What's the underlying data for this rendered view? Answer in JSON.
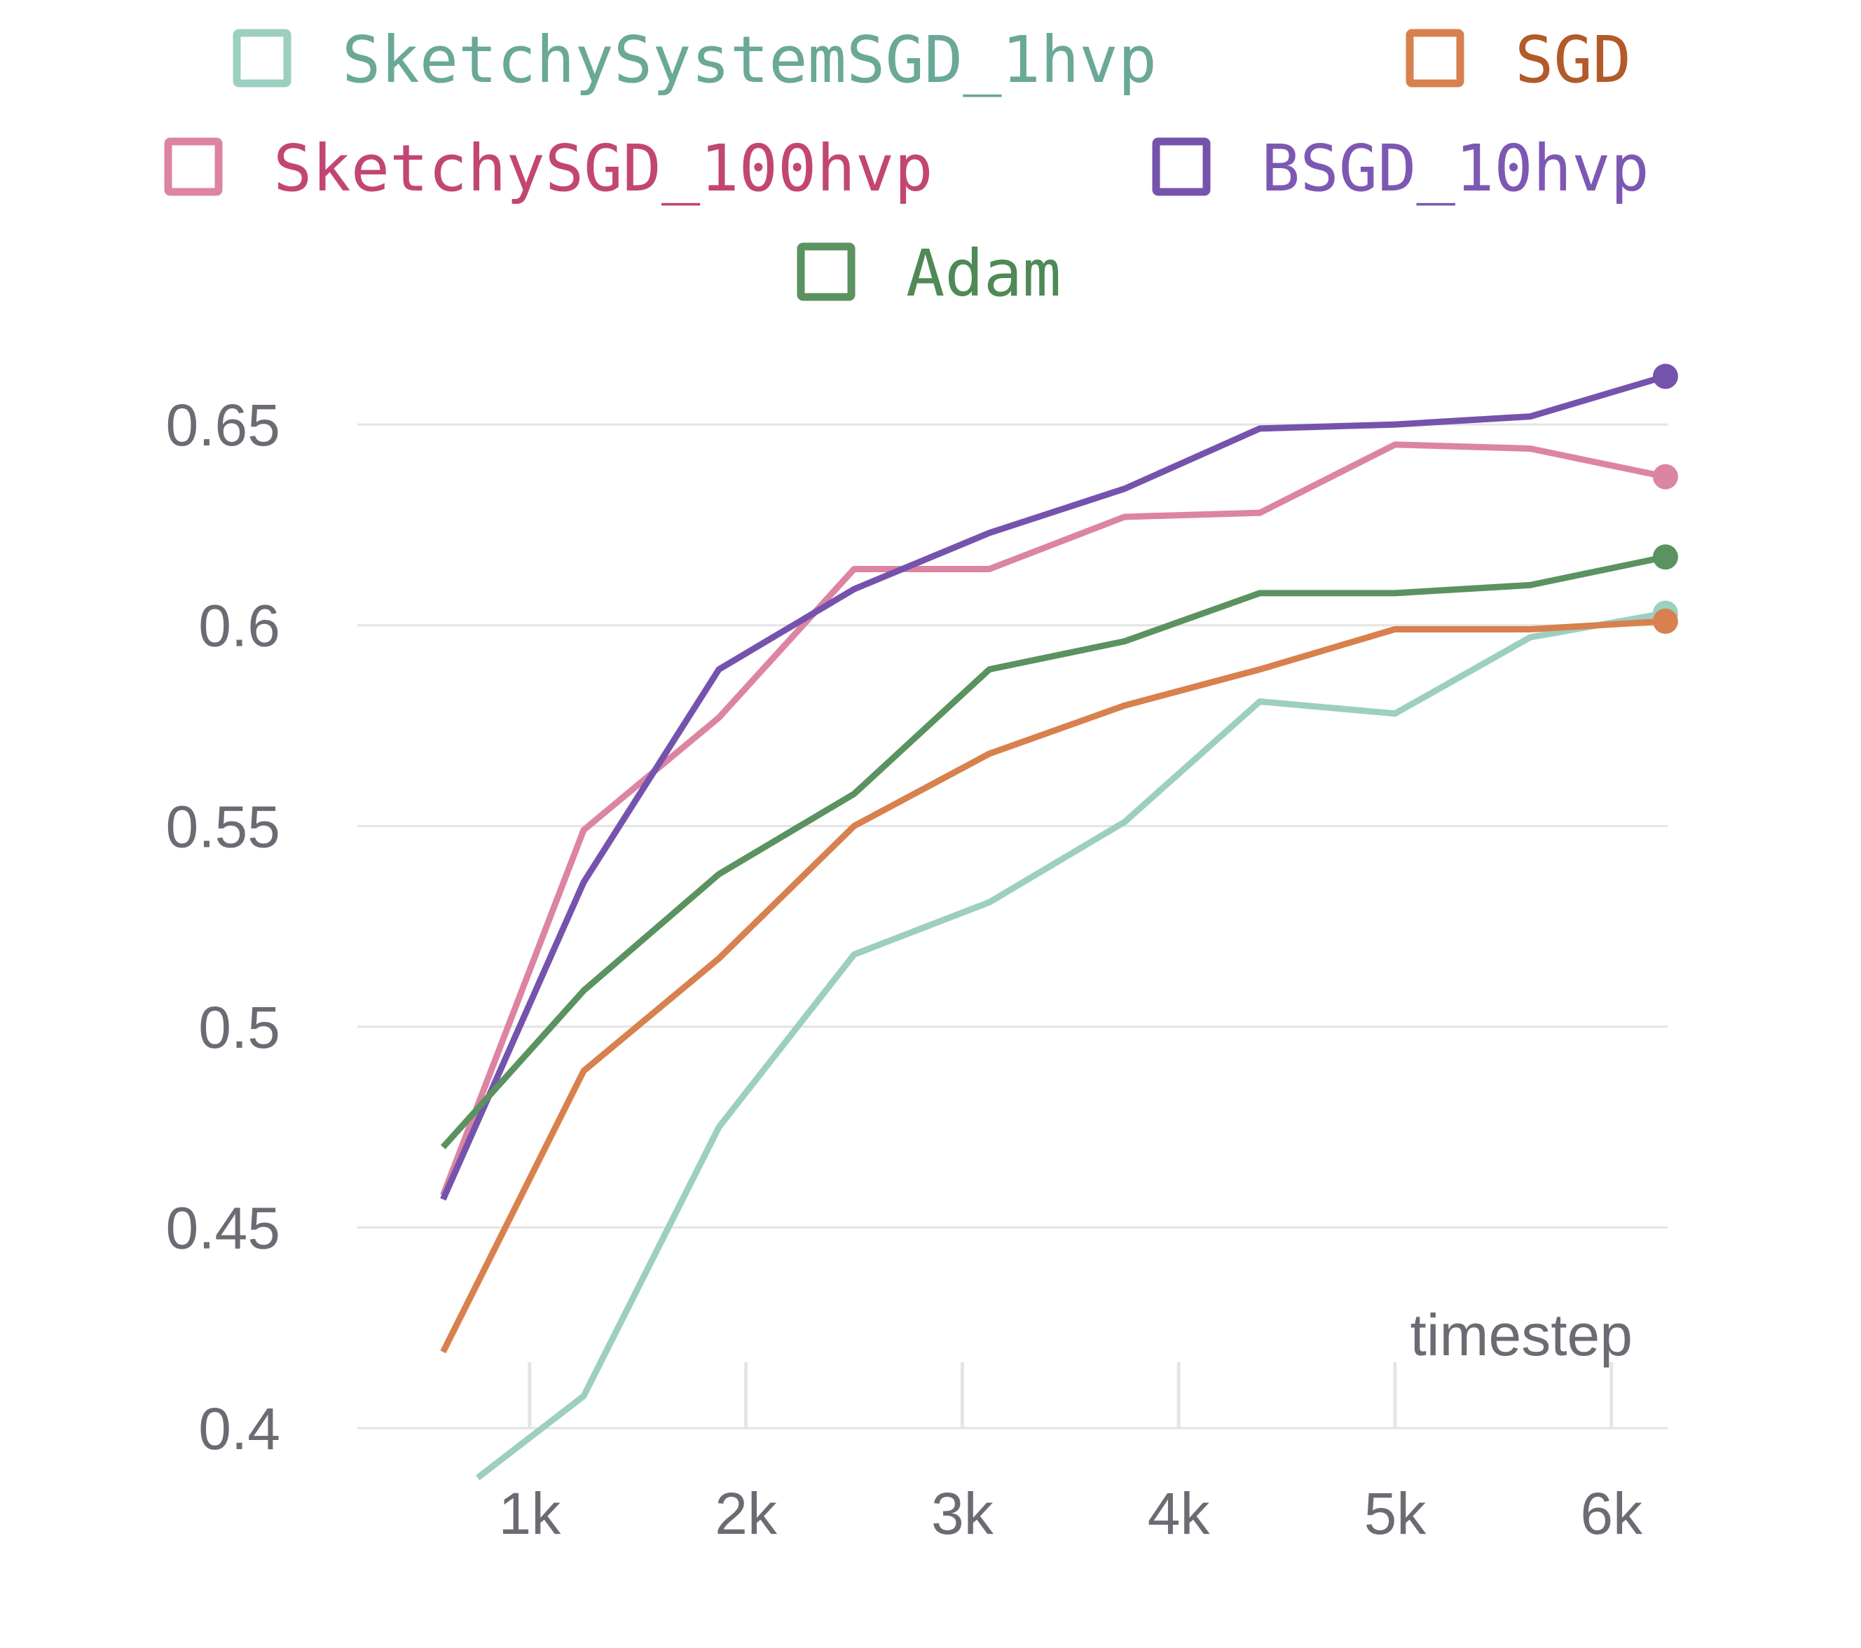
{
  "chart_data": {
    "type": "line",
    "title": "",
    "xlabel": "timestep",
    "ylabel": "",
    "x": [
      600,
      1250,
      1875,
      2500,
      3125,
      3750,
      4375,
      5000,
      5625,
      6250
    ],
    "xlim": [
      220,
      6260
    ],
    "ylim": [
      0.392,
      0.672
    ],
    "xticks": [
      1000,
      2000,
      3000,
      4000,
      5000,
      6000
    ],
    "xtick_labels": [
      "1k",
      "2k",
      "3k",
      "4k",
      "5k",
      "6k"
    ],
    "yticks": [
      0.4,
      0.45,
      0.5,
      0.55,
      0.6,
      0.65
    ],
    "ytick_labels": [
      "0.4",
      "0.45",
      "0.5",
      "0.55",
      "0.6",
      "0.65"
    ],
    "grid": true,
    "legend_position": "top",
    "series": [
      {
        "name": "SketchySystemSGD_1hvp",
        "color": "#9ccfc1",
        "text_color": "#6aa897",
        "values": [
          0.381,
          0.408,
          0.475,
          0.518,
          0.531,
          0.551,
          0.581,
          0.578,
          0.597,
          0.603
        ]
      },
      {
        "name": "SGD",
        "color": "#d8804e",
        "text_color": "#b25a2a",
        "values": [
          0.419,
          0.489,
          0.517,
          0.55,
          0.568,
          0.58,
          0.589,
          0.599,
          0.599,
          0.601
        ]
      },
      {
        "name": "SketchySGD_100hvp",
        "color": "#dc84a2",
        "text_color": "#c24673",
        "values": [
          0.458,
          0.549,
          0.577,
          0.614,
          0.614,
          0.627,
          0.628,
          0.645,
          0.644,
          0.637
        ]
      },
      {
        "name": "BSGD_10hvp",
        "color": "#7553ad",
        "text_color": "#7d58b3",
        "values": [
          0.457,
          0.536,
          0.589,
          0.609,
          0.623,
          0.634,
          0.649,
          0.65,
          0.652,
          0.662
        ]
      },
      {
        "name": "Adam",
        "color": "#5a9260",
        "text_color": "#4f8956",
        "values": [
          0.47,
          0.509,
          0.538,
          0.558,
          0.589,
          0.596,
          0.608,
          0.608,
          0.61,
          0.617
        ]
      }
    ]
  }
}
